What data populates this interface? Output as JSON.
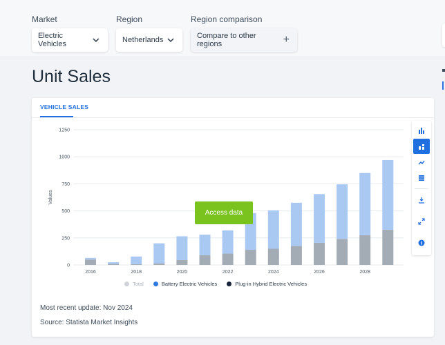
{
  "filters": {
    "market": {
      "label": "Market",
      "value": "Electric Vehicles"
    },
    "region": {
      "label": "Region",
      "value": "Netherlands"
    },
    "comparison": {
      "label": "Region comparison",
      "value": "Compare to other regions"
    }
  },
  "page": {
    "title": "Unit Sales"
  },
  "card": {
    "tab_label": "VEHICLE SALES",
    "access_button": "Access data",
    "update_text": "Most recent update: Nov 2024",
    "source_text": "Source: Statista Market Insights"
  },
  "colors": {
    "bev": "#a9c8f2",
    "phev": "#a3acb5",
    "legend_bev": "#2d7be0",
    "legend_phev": "#16243a",
    "legend_total": "#cfd3d8",
    "accent": "#1f6fe0",
    "access": "#7ac21d"
  },
  "toolbar": {
    "icons": [
      "bar-chart-icon",
      "stacked-bar-icon",
      "trend-line-icon",
      "table-icon",
      "download-icon",
      "fullscreen-icon",
      "info-icon"
    ]
  },
  "chart_data": {
    "type": "bar",
    "stacked": true,
    "categories": [
      "2016",
      "2017",
      "2018",
      "2019",
      "2020",
      "2021",
      "2022",
      "2023",
      "2024",
      "2025",
      "2026",
      "2027",
      "2028",
      "2029"
    ],
    "x_tick_labels": [
      "2016",
      "2018",
      "2020",
      "2022",
      "2024",
      "2026",
      "2028"
    ],
    "series": [
      {
        "name": "Plug-in Hybrid Electric Vehicles",
        "values": [
          50,
          10,
          8,
          15,
          45,
          90,
          105,
          140,
          150,
          175,
          205,
          240,
          275,
          325
        ]
      },
      {
        "name": "Battery Electric Vehicles",
        "values": [
          15,
          15,
          70,
          185,
          220,
          190,
          215,
          340,
          355,
          400,
          450,
          505,
          575,
          645
        ]
      }
    ],
    "legend": [
      "Total",
      "Battery Electric Vehicles",
      "Plug-in Hybrid Electric Vehicles"
    ],
    "ylabel": "Values",
    "ylim": [
      0,
      1250
    ],
    "yticks": [
      0,
      250,
      500,
      750,
      1000,
      1250
    ],
    "grid": true,
    "legend_position": "bottom"
  }
}
